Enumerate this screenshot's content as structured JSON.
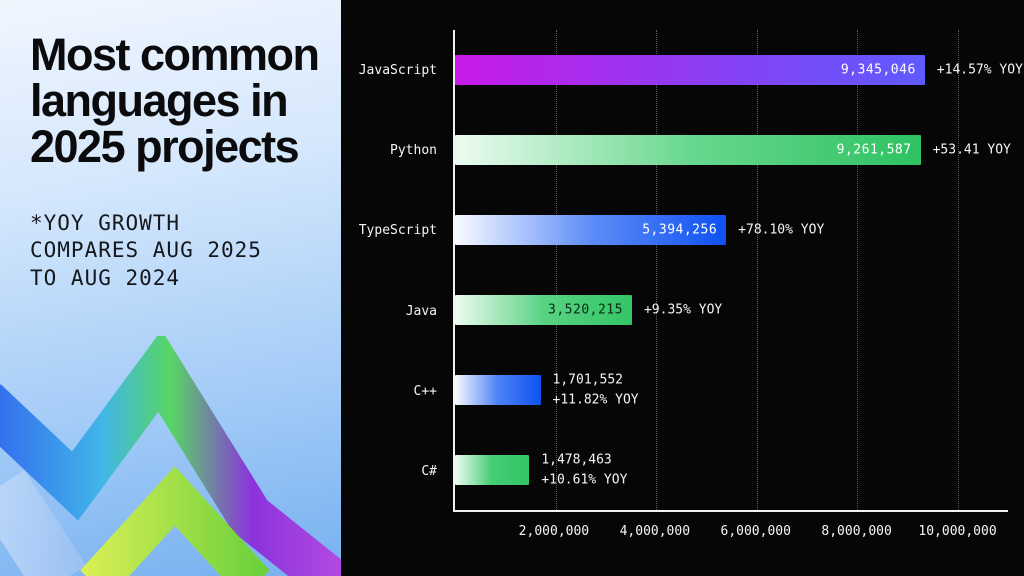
{
  "left_panel": {
    "title_lines": [
      "Most common",
      "languages in",
      "2025 projects"
    ],
    "note_lines": [
      "*YOY GROWTH",
      "COMPARES AUG 2025",
      "TO AUG 2024"
    ]
  },
  "chart_data": {
    "type": "bar",
    "orientation": "horizontal",
    "title": "Most common languages in 2025 projects",
    "background": "#060606",
    "grid": "dotted-vertical",
    "xlim": [
      0,
      11000000
    ],
    "xmax": 11000000,
    "ticks": [
      {
        "value": 2000000,
        "label": "2,000,000"
      },
      {
        "value": 4000000,
        "label": "4,000,000"
      },
      {
        "value": 6000000,
        "label": "6,000,000"
      },
      {
        "value": 8000000,
        "label": "8,000,000"
      },
      {
        "value": 10000000,
        "label": "10,000,000"
      }
    ],
    "bars": [
      {
        "category": "JavaScript",
        "value": 9345046,
        "value_label": "9,345,046",
        "growth_label": "+14.57% YOY",
        "gradient": [
          "#c81ae8",
          "#8f3cf2",
          "#5e5bff"
        ],
        "value_inside": true,
        "inside_color": "#ffffff"
      },
      {
        "category": "Python",
        "value": 9261587,
        "value_label": "9,261,587",
        "growth_label": "+53.41 YOY",
        "gradient": [
          "#edfbf1",
          "#69d88f",
          "#2ec261"
        ],
        "value_inside": true,
        "inside_color": "#ffffff"
      },
      {
        "category": "TypeScript",
        "value": 5394256,
        "value_label": "5,394,256",
        "growth_label": "+78.10% YOY",
        "gradient": [
          "#f8faff",
          "#5e8df7",
          "#0e51f2"
        ],
        "value_inside": true,
        "inside_color": "#ffffff"
      },
      {
        "category": "Java",
        "value": 3520215,
        "value_label": "3,520,215",
        "growth_label": "+9.35% YOY",
        "gradient": [
          "#edfbf1",
          "#59d383",
          "#33c565"
        ],
        "value_inside": true,
        "inside_color": "#0a2a15"
      },
      {
        "category": "C++",
        "value": 1701552,
        "value_label": "1,701,552",
        "growth_label": "+11.82% YOY",
        "gradient": [
          "#f8faff",
          "#4d82f6",
          "#0e51f2"
        ],
        "value_inside": false,
        "inside_color": "#ffffff"
      },
      {
        "category": "C#",
        "value": 1478463,
        "value_label": "1,478,463",
        "growth_label": "+10.61% YOY",
        "gradient": [
          "#edfbf1",
          "#45cc74",
          "#33c565"
        ],
        "value_inside": false,
        "inside_color": "#ffffff"
      }
    ]
  }
}
